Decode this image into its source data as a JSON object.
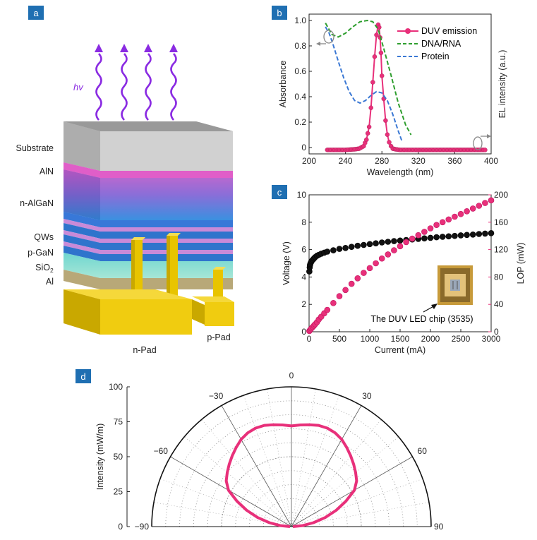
{
  "panels": {
    "a": {
      "label": "a",
      "hv_label": "hv",
      "layers": [
        "Substrate",
        "AlN",
        "n-AlGaN",
        "QWs",
        "p-GaN",
        "SiO",
        "Al"
      ],
      "sio2_subscript": "2",
      "pad_n": "n-Pad",
      "pad_p": "p-Pad",
      "colors": {
        "substrate": "#b8b8b8",
        "aln": "#e05ec8",
        "pad": "#e8c400",
        "arrow": "#8a2be2"
      }
    },
    "b": {
      "label": "b"
    },
    "c": {
      "label": "c",
      "chip_label": "The DUV LED chip (3535)"
    },
    "d": {
      "label": "d"
    }
  },
  "chart_data": [
    {
      "id": "b",
      "type": "line",
      "xlabel": "Wavelength (nm)",
      "ylabel": "Absorbance",
      "y2label": "EL intensity (a.u.)",
      "xlim": [
        200,
        400
      ],
      "ylim": [
        -0.05,
        1.05
      ],
      "xticks": [
        200,
        240,
        280,
        320,
        360,
        400
      ],
      "yticks": [
        0,
        0.2,
        0.4,
        0.6,
        0.8,
        1.0
      ],
      "ytick_labels": [
        "0",
        "0.2",
        "0.4",
        "0.6",
        "0.8",
        "1.0"
      ],
      "legend": [
        "DUV emission",
        "DNA/RNA",
        "Protein"
      ],
      "legend_position": "top-right",
      "series": [
        {
          "name": "DUV emission",
          "axis": "right",
          "color": "#e8307a",
          "style": "line+marker",
          "x": [
            220,
            230,
            240,
            250,
            255,
            260,
            263,
            266,
            268,
            270,
            272,
            274,
            276,
            277,
            278,
            279,
            280,
            282,
            284,
            286,
            288,
            290,
            292,
            295,
            300,
            310,
            320,
            340,
            360,
            380,
            395
          ],
          "y": [
            0.02,
            0.02,
            0.02,
            0.025,
            0.03,
            0.05,
            0.1,
            0.2,
            0.35,
            0.55,
            0.75,
            0.92,
            1.0,
            0.98,
            0.9,
            0.78,
            0.6,
            0.42,
            0.25,
            0.14,
            0.08,
            0.05,
            0.03,
            0.025,
            0.02,
            0.02,
            0.02,
            0.02,
            0.02,
            0.02,
            0.02
          ]
        },
        {
          "name": "DNA/RNA",
          "axis": "left",
          "color": "#2e9e2e",
          "style": "dashed",
          "x": [
            218,
            225,
            232,
            240,
            248,
            256,
            264,
            270,
            276,
            282,
            290,
            298,
            306,
            312
          ],
          "y": [
            0.98,
            0.89,
            0.87,
            0.9,
            0.95,
            0.99,
            1.0,
            0.99,
            0.93,
            0.78,
            0.57,
            0.35,
            0.18,
            0.1
          ]
        },
        {
          "name": "Protein",
          "axis": "left",
          "color": "#3a78d4",
          "style": "dashed",
          "x": [
            218,
            222,
            226,
            232,
            238,
            244,
            250,
            256,
            262,
            268,
            274,
            280,
            286,
            292,
            298,
            302
          ],
          "y": [
            0.95,
            0.9,
            0.82,
            0.68,
            0.55,
            0.44,
            0.37,
            0.35,
            0.37,
            0.41,
            0.44,
            0.43,
            0.37,
            0.26,
            0.13,
            0.05
          ]
        }
      ]
    },
    {
      "id": "c",
      "type": "scatter",
      "xlabel": "Current (mA)",
      "ylabel": "Voltage (V)",
      "y2label": "LOP (mW)",
      "xlim": [
        0,
        3000
      ],
      "ylim": [
        0,
        10
      ],
      "y2lim": [
        0,
        200
      ],
      "xticks": [
        0,
        500,
        1000,
        1500,
        2000,
        2500,
        3000
      ],
      "yticks": [
        0,
        2,
        4,
        6,
        8,
        10
      ],
      "y2ticks": [
        0,
        40,
        80,
        120,
        160,
        200
      ],
      "series": [
        {
          "name": "Voltage",
          "axis": "left",
          "color": "#111111",
          "x": [
            5,
            10,
            15,
            20,
            30,
            40,
            60,
            80,
            100,
            130,
            160,
            200,
            250,
            300,
            400,
            500,
            600,
            700,
            800,
            900,
            1000,
            1100,
            1200,
            1300,
            1400,
            1500,
            1600,
            1700,
            1800,
            1900,
            2000,
            2100,
            2200,
            2300,
            2400,
            2500,
            2600,
            2700,
            2800,
            2900,
            3000
          ],
          "y": [
            4.4,
            4.7,
            4.85,
            4.95,
            5.05,
            5.15,
            5.25,
            5.35,
            5.45,
            5.55,
            5.62,
            5.7,
            5.78,
            5.85,
            5.95,
            6.05,
            6.12,
            6.2,
            6.28,
            6.34,
            6.4,
            6.46,
            6.52,
            6.57,
            6.62,
            6.66,
            6.7,
            6.74,
            6.78,
            6.82,
            6.86,
            6.9,
            6.94,
            6.97,
            7.0,
            7.04,
            7.07,
            7.1,
            7.14,
            7.17,
            7.2
          ]
        },
        {
          "name": "LOP",
          "axis": "right",
          "color": "#e8307a",
          "x": [
            5,
            20,
            40,
            60,
            80,
            100,
            130,
            160,
            200,
            250,
            300,
            400,
            500,
            600,
            700,
            800,
            900,
            1000,
            1100,
            1200,
            1300,
            1400,
            1500,
            1600,
            1700,
            1800,
            1900,
            2000,
            2100,
            2200,
            2300,
            2400,
            2500,
            2600,
            2700,
            2800,
            2900,
            3000
          ],
          "y": [
            1,
            3,
            5,
            7,
            9,
            11,
            14,
            18,
            22,
            27,
            32,
            42,
            52,
            61,
            70,
            78,
            86,
            93,
            100,
            107,
            113,
            119,
            125,
            131,
            136,
            141,
            146,
            151,
            156,
            160,
            164,
            168,
            172,
            176,
            180,
            184,
            188,
            192
          ]
        }
      ]
    },
    {
      "id": "d",
      "type": "polar",
      "ylabel": "Intensity (mW/m)",
      "rlim": [
        0,
        100
      ],
      "rticks": [
        0,
        25,
        50,
        75,
        100
      ],
      "angle_ticks": [
        -90,
        -60,
        -30,
        0,
        30,
        60,
        90
      ],
      "angle_tick_labels": [
        "−90",
        "−60",
        "−30",
        "0",
        "30",
        "60",
        "90"
      ],
      "series": [
        {
          "name": "Intensity",
          "color": "#e8307a",
          "theta": [
            -90,
            -85,
            -80,
            -75,
            -70,
            -65,
            -60,
            -55,
            -50,
            -45,
            -40,
            -35,
            -30,
            -25,
            -20,
            -15,
            -10,
            -5,
            0,
            5,
            10,
            15,
            20,
            25,
            30,
            35,
            40,
            45,
            50,
            55,
            60,
            65,
            70,
            75,
            80,
            85,
            90
          ],
          "r": [
            1,
            8,
            16,
            25,
            34,
            43,
            52,
            57,
            60,
            63,
            66,
            69,
            72,
            74,
            75,
            75,
            74,
            73,
            72,
            73,
            74,
            75,
            75,
            74,
            72,
            69,
            66,
            63,
            60,
            57,
            52,
            43,
            34,
            25,
            16,
            8,
            1
          ]
        }
      ]
    }
  ]
}
